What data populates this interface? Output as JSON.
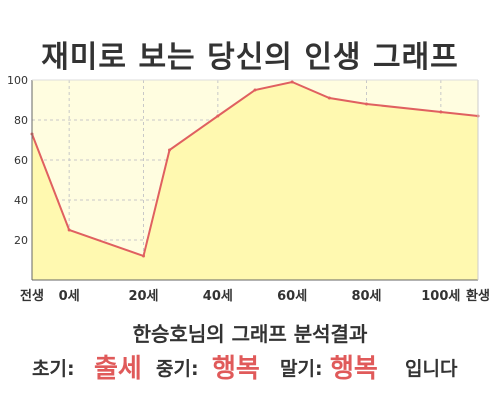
{
  "title": "재미로 보는 당신의 인생 그래프",
  "summary": {
    "heading": "한승호님의 그래프 분석결과",
    "early_label": "초기:",
    "early_value": "출세",
    "mid_label": "중기:",
    "mid_value": "행복",
    "late_label": "말기:",
    "late_value": "행복",
    "suffix": "입니다"
  },
  "colors": {
    "plot_background": "#fffde0",
    "area_fill": "#fff9b0",
    "line": "#e06060",
    "highlight": "#e05a5a"
  },
  "chart_data": {
    "type": "area",
    "title": "재미로 보는 당신의 인생 그래프",
    "xlabel": "",
    "ylabel": "",
    "x": [
      -10,
      0,
      20,
      27,
      40,
      50,
      60,
      70,
      80,
      100,
      110
    ],
    "values": [
      73,
      25,
      12,
      65,
      82,
      95,
      99,
      91,
      88,
      84,
      82
    ],
    "xlim": [
      -10,
      110
    ],
    "ylim": [
      0,
      100
    ],
    "x_ticks": [
      {
        "x": -10,
        "label": "전생"
      },
      {
        "x": 0,
        "label": "0세"
      },
      {
        "x": 20,
        "label": "20세"
      },
      {
        "x": 40,
        "label": "40세"
      },
      {
        "x": 60,
        "label": "60세"
      },
      {
        "x": 80,
        "label": "80세"
      },
      {
        "x": 100,
        "label": "100세"
      },
      {
        "x": 110,
        "label": "환생"
      }
    ],
    "y_ticks": [
      20,
      40,
      60,
      80,
      100
    ],
    "grid": true,
    "grid_style": "dashed",
    "legend": "none"
  }
}
